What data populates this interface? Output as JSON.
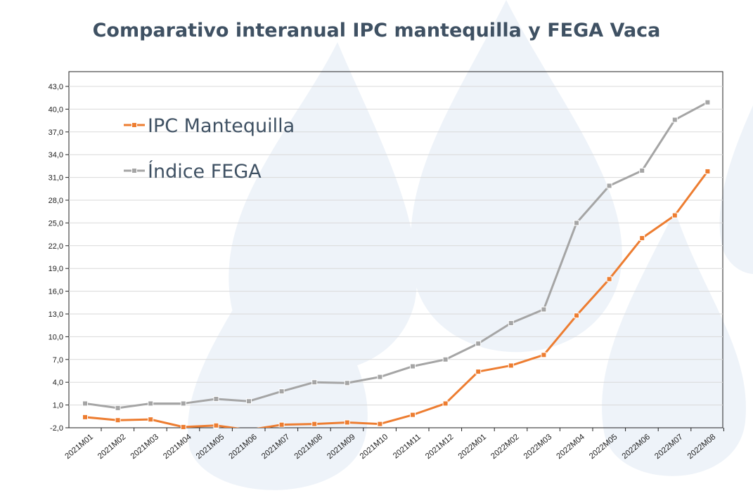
{
  "chart_data": {
    "type": "line",
    "title": "Comparativo interanual IPC mantequilla y FEGA Vaca",
    "xlabel": "",
    "ylabel": "",
    "ylim": [
      -2.0,
      45.0
    ],
    "yticks": [
      "-2,0",
      "1,0",
      "4,0",
      "7,0",
      "10,0",
      "13,0",
      "16,0",
      "19,0",
      "22,0",
      "25,0",
      "28,0",
      "31,0",
      "34,0",
      "37,0",
      "40,0",
      "43,0"
    ],
    "ytick_values": [
      -2,
      1,
      4,
      7,
      10,
      13,
      16,
      19,
      22,
      25,
      28,
      31,
      34,
      37,
      40,
      43
    ],
    "categories": [
      "2021M01",
      "2021M02",
      "2021M03",
      "2021M04",
      "2021M05",
      "2021M06",
      "2021M07",
      "2021M08",
      "2021M09",
      "2021M10",
      "2021M11",
      "2021M12",
      "2022M01",
      "2022M02",
      "2022M03",
      "2022M04",
      "2022M05",
      "2022M06",
      "2022M07",
      "2022M08"
    ],
    "series": [
      {
        "name": "IPC Mantequilla",
        "color": "#ed7d31",
        "values": [
          -0.6,
          -1.0,
          -0.9,
          -1.9,
          -1.7,
          -2.3,
          -1.6,
          -1.5,
          -1.3,
          -1.5,
          -0.3,
          1.2,
          5.4,
          6.2,
          7.6,
          12.8,
          17.6,
          23.0,
          26.0,
          31.8
        ]
      },
      {
        "name": "Índice FEGA",
        "color": "#a5a5a5",
        "values": [
          1.2,
          0.6,
          1.2,
          1.2,
          1.8,
          1.5,
          2.8,
          4.0,
          3.9,
          4.7,
          6.1,
          7.0,
          9.1,
          11.8,
          13.6,
          25.0,
          29.9,
          31.9,
          38.6,
          40.9
        ]
      }
    ],
    "legend_position": "top-left"
  }
}
